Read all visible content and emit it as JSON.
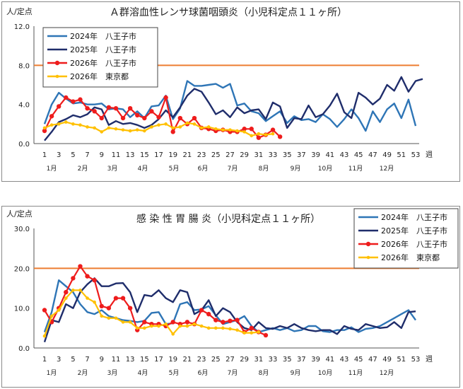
{
  "chart_data": [
    {
      "type": "line",
      "title": "Ａ群溶血性レンサ球菌咽頭炎（小児科定点１１ヶ所）",
      "ylabel": "人/定点",
      "xlabel": "週",
      "ylim": [
        0,
        12
      ],
      "yticks": [
        "0.0",
        "4.0",
        "8.0",
        "12.0"
      ],
      "xticks": [
        1,
        3,
        5,
        7,
        9,
        11,
        13,
        15,
        17,
        19,
        21,
        23,
        25,
        27,
        29,
        31,
        33,
        35,
        37,
        39,
        41,
        43,
        45,
        47,
        49,
        51,
        53
      ],
      "months": [
        "1月",
        "2月",
        "3月",
        "4月",
        "5月",
        "6月",
        "7月",
        "8月",
        "9月",
        "10月",
        "11月",
        "12月"
      ],
      "reference_line": {
        "value": 8,
        "color": "#ed7d31"
      },
      "legend_position": "top-left",
      "series": [
        {
          "name": "2024年　八王子市",
          "color": "#2e75b6",
          "marker": "none",
          "values": [
            2.0,
            4.0,
            5.2,
            4.6,
            4.1,
            4.2,
            4.0,
            4.0,
            4.1,
            3.5,
            3.6,
            3.5,
            2.7,
            3.3,
            2.6,
            3.8,
            3.9,
            4.9,
            2.5,
            3.6,
            6.4,
            5.9,
            5.9,
            6.0,
            6.1,
            5.7,
            6.1,
            3.9,
            4.1,
            3.3,
            3.1,
            2.3,
            2.8,
            3.3,
            2.1,
            2.8,
            2.4,
            2.5,
            2.2,
            3.0,
            2.5,
            1.7,
            2.5,
            3.5,
            2.6,
            1.3,
            3.3,
            2.2,
            3.5,
            4.1,
            2.6,
            4.5,
            1.8
          ]
        },
        {
          "name": "2025年　八王子市",
          "color": "#1f2d6b",
          "marker": "none",
          "values": [
            0.3,
            1.2,
            2.2,
            2.5,
            2.9,
            2.7,
            3.0,
            3.7,
            3.5,
            1.9,
            2.3,
            2.0,
            2.1,
            1.9,
            1.6,
            1.9,
            2.5,
            3.4,
            2.7,
            3.7,
            4.9,
            5.6,
            5.3,
            4.2,
            3.0,
            3.4,
            2.7,
            3.7,
            3.1,
            3.4,
            3.5,
            2.5,
            4.2,
            3.8,
            1.6,
            2.6,
            2.5,
            3.9,
            2.7,
            3.0,
            3.9,
            5.1,
            3.2,
            2.6,
            5.2,
            4.7,
            4.0,
            4.6,
            6.0,
            5.4,
            6.8,
            5.3,
            6.4,
            6.6
          ]
        },
        {
          "name": "2026年　八王子市",
          "color": "#ee1c1c",
          "marker": "dot",
          "values": [
            1.3,
            2.8,
            3.8,
            4.7,
            4.3,
            4.5,
            3.6,
            3.3,
            2.6,
            3.7,
            3.6,
            2.6,
            3.6,
            2.9,
            2.6,
            3.3,
            2.7,
            4.7,
            1.2,
            2.6,
            2.0,
            2.6,
            1.6,
            1.5,
            1.3,
            1.4,
            1.2,
            1.2,
            1.5,
            1.5,
            0.6,
            0.9,
            1.4,
            0.7
          ]
        },
        {
          "name": "2026年　東京都",
          "color": "#ffc000",
          "marker": "dot",
          "values": [
            1.6,
            1.9,
            2.0,
            2.2,
            2.0,
            1.9,
            1.7,
            1.6,
            1.2,
            1.6,
            1.5,
            1.4,
            1.3,
            1.4,
            1.3,
            1.7,
            1.9,
            2.0,
            1.6,
            1.7,
            2.1,
            2.0,
            1.6,
            1.7,
            1.5,
            1.4,
            1.4,
            1.3,
            1.2,
            0.8,
            1.0,
            0.9,
            1.0
          ]
        }
      ]
    },
    {
      "type": "line",
      "title": "感 染 性 胃 腸 炎（小児科定点１１ヶ所）",
      "ylabel": "人/定点",
      "xlabel": "週",
      "ylim": [
        0,
        30
      ],
      "yticks": [
        "0.0",
        "10.0",
        "20.0",
        "30.0"
      ],
      "xticks": [
        1,
        3,
        5,
        7,
        9,
        11,
        13,
        15,
        17,
        19,
        21,
        23,
        25,
        27,
        29,
        31,
        33,
        35,
        37,
        39,
        41,
        43,
        45,
        47,
        49,
        51,
        53
      ],
      "months": [
        "1月",
        "2月",
        "3月",
        "4月",
        "5月",
        "6月",
        "7月",
        "8月",
        "9月",
        "10月",
        "11月",
        "12月"
      ],
      "reference_line": {
        "value": 20,
        "color": "#ed7d31"
      },
      "legend_position": "top-right",
      "series": [
        {
          "name": "2024年　八王子市",
          "color": "#2e75b6",
          "marker": "none",
          "values": [
            4.0,
            9.0,
            17.0,
            15.5,
            14.0,
            11.0,
            9.0,
            8.5,
            9.5,
            8.0,
            7.5,
            7.0,
            6.8,
            6.5,
            6.8,
            8.8,
            9.0,
            6.0,
            6.2,
            11.0,
            11.5,
            9.5,
            9.7,
            10.5,
            8.2,
            6.0,
            6.5,
            7.0,
            8.0,
            5.5,
            4.0,
            4.5,
            5.0,
            4.5,
            5.0,
            4.2,
            4.5,
            5.5,
            5.5,
            4.2,
            4.0,
            4.5,
            4.5,
            5.2,
            4.0,
            4.8,
            5.0,
            5.5,
            6.5,
            7.5,
            8.5,
            9.5,
            7.0
          ]
        },
        {
          "name": "2025年　八王子市",
          "color": "#1f2d6b",
          "marker": "none",
          "values": [
            1.5,
            7.0,
            6.5,
            11.0,
            10.0,
            14.0,
            16.0,
            17.5,
            15.5,
            15.5,
            16.2,
            16.3,
            14.0,
            9.0,
            13.3,
            13.0,
            14.5,
            12.5,
            11.5,
            14.5,
            14.0,
            8.5,
            9.5,
            12.0,
            8.0,
            10.0,
            9.0,
            6.5,
            5.0,
            4.5,
            6.5,
            5.0,
            4.8,
            5.5,
            5.0,
            6.0,
            5.0,
            4.5,
            4.2,
            4.5,
            4.5,
            3.5,
            5.5,
            4.8,
            4.5,
            6.0,
            5.5,
            5.0,
            5.2,
            6.5,
            5.0,
            9.0,
            9.2
          ]
        },
        {
          "name": "2026年　八王子市",
          "color": "#ee1c1c",
          "marker": "dot",
          "values": [
            9.5,
            6.5,
            10.0,
            14.0,
            17.5,
            20.5,
            18.0,
            17.0,
            10.5,
            10.0,
            12.5,
            12.5,
            10.0,
            4.5,
            6.5,
            6.0,
            6.0,
            5.5,
            6.5,
            6.0,
            6.5,
            6.0,
            9.5,
            8.5,
            7.0,
            6.5,
            6.8,
            7.0,
            4.0,
            5.0,
            4.0,
            3.2
          ]
        },
        {
          "name": "2026年　東京都",
          "color": "#ffc000",
          "marker": "dot",
          "values": [
            3.0,
            8.0,
            9.5,
            12.5,
            14.5,
            14.5,
            12.5,
            11.5,
            8.0,
            7.5,
            7.5,
            6.5,
            6.5,
            5.0,
            5.0,
            5.5,
            5.5,
            6.0,
            3.5,
            5.5,
            5.5,
            6.0,
            5.5,
            5.0,
            5.0,
            5.0,
            4.8,
            4.5,
            3.8,
            3.8,
            4.0
          ]
        }
      ]
    }
  ]
}
